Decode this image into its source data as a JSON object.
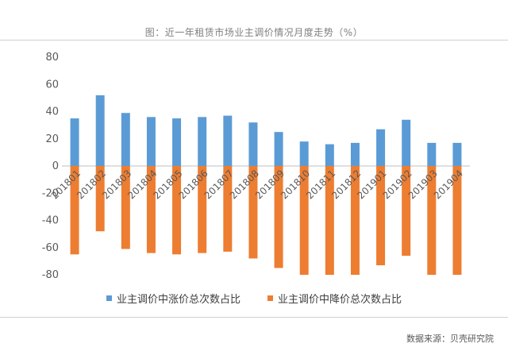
{
  "title": "图：近一年租赁市场业主调价情况月度走势（%）",
  "source": "数据来源：贝壳研究院",
  "colors": {
    "up": "#5B9BD5",
    "down": "#ED7D31",
    "grid": "#d9d9d9",
    "axis": "#bfbfbf"
  },
  "chart_data": {
    "type": "bar",
    "title": "图：近一年租赁市场业主调价情况月度走势（%）",
    "xlabel": "",
    "ylabel": "",
    "ylim": [
      -80,
      80
    ],
    "yticks": [
      80,
      60,
      40,
      20,
      0,
      -20,
      -40,
      -60,
      -80
    ],
    "grid": false,
    "legend_position": "bottom",
    "categories": [
      "201801",
      "201802",
      "201803",
      "201804",
      "201805",
      "201806",
      "201807",
      "201808",
      "201809",
      "201810",
      "201811",
      "201812",
      "201901",
      "201902",
      "201903",
      "201904"
    ],
    "series": [
      {
        "name": "业主调价中涨价总次数占比",
        "values": [
          35,
          52,
          39,
          36,
          35,
          36,
          37,
          32,
          25,
          18,
          16,
          17,
          27,
          34,
          17,
          17
        ]
      },
      {
        "name": "业主调价中降价总次数占比",
        "values": [
          -65,
          -48,
          -61,
          -64,
          -65,
          -64,
          -63,
          -68,
          -75,
          -80,
          -80,
          -80,
          -73,
          -66,
          -80,
          -80
        ]
      }
    ]
  }
}
